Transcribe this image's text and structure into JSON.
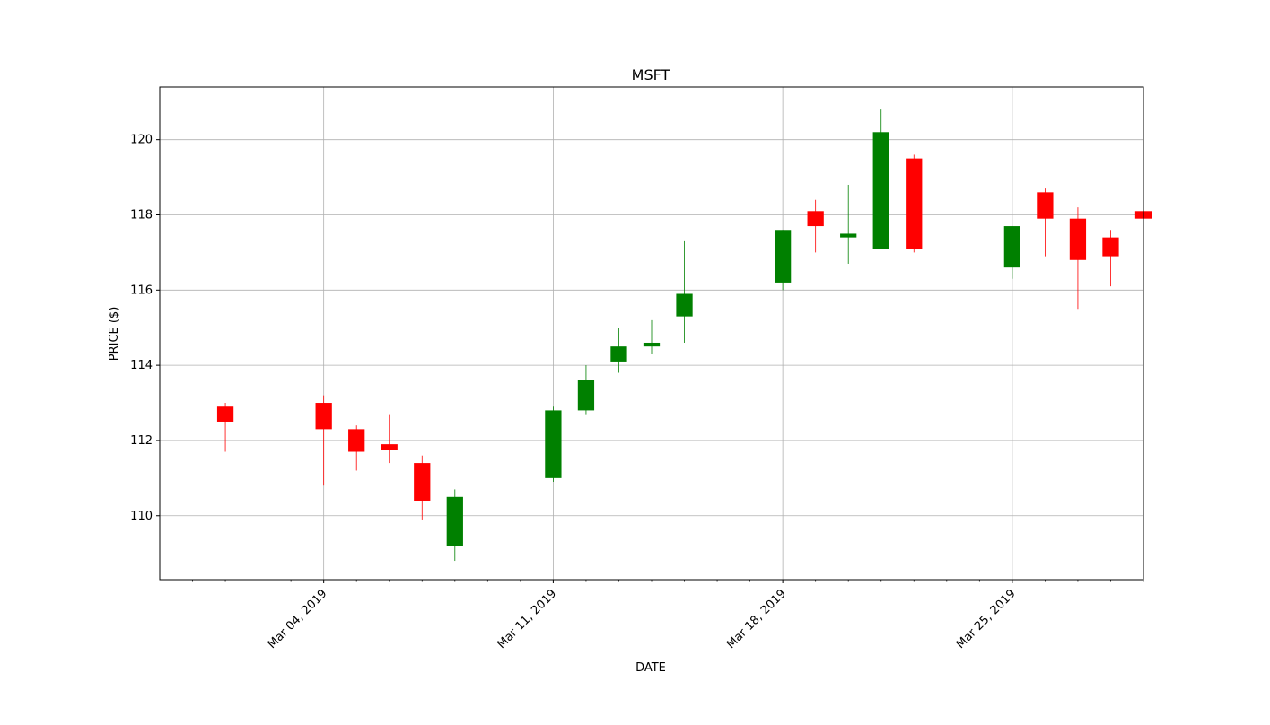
{
  "chart_data": {
    "type": "candlestick",
    "title": "MSFT",
    "xlabel": "DATE",
    "ylabel": "PRICE ($)",
    "ylim": [
      108.3,
      121.4
    ],
    "xlim": [
      "2019-02-27",
      "2019-03-29"
    ],
    "grid": true,
    "up_color": "#008000",
    "down_color": "#ff0000",
    "yticks": [
      110,
      112,
      114,
      116,
      118,
      120
    ],
    "xticks": [
      {
        "date": "2019-03-04",
        "label": "Mar 04, 2019"
      },
      {
        "date": "2019-03-11",
        "label": "Mar 11, 2019"
      },
      {
        "date": "2019-03-18",
        "label": "Mar 18, 2019"
      },
      {
        "date": "2019-03-25",
        "label": "Mar 25, 2019"
      }
    ],
    "minor_ticks": [
      "2019-02-28",
      "2019-03-01",
      "2019-03-02",
      "2019-03-03",
      "2019-03-05",
      "2019-03-06",
      "2019-03-07",
      "2019-03-08",
      "2019-03-09",
      "2019-03-10",
      "2019-03-12",
      "2019-03-13",
      "2019-03-14",
      "2019-03-15",
      "2019-03-16",
      "2019-03-17",
      "2019-03-19",
      "2019-03-20",
      "2019-03-21",
      "2019-03-22",
      "2019-03-23",
      "2019-03-24",
      "2019-03-26",
      "2019-03-27",
      "2019-03-28",
      "2019-03-29"
    ],
    "candles": [
      {
        "date": "2019-03-01",
        "open": 112.9,
        "high": 113.0,
        "low": 111.7,
        "close": 112.5
      },
      {
        "date": "2019-03-04",
        "open": 113.0,
        "high": 113.2,
        "low": 110.8,
        "close": 112.3
      },
      {
        "date": "2019-03-05",
        "open": 112.3,
        "high": 112.4,
        "low": 111.2,
        "close": 111.7
      },
      {
        "date": "2019-03-06",
        "open": 111.9,
        "high": 112.7,
        "low": 111.4,
        "close": 111.75
      },
      {
        "date": "2019-03-07",
        "open": 111.4,
        "high": 111.6,
        "low": 109.9,
        "close": 110.4
      },
      {
        "date": "2019-03-08",
        "open": 109.2,
        "high": 110.7,
        "low": 108.8,
        "close": 110.5
      },
      {
        "date": "2019-03-11",
        "open": 111.0,
        "high": 112.9,
        "low": 110.9,
        "close": 112.8
      },
      {
        "date": "2019-03-12",
        "open": 112.8,
        "high": 114.0,
        "low": 112.7,
        "close": 113.6
      },
      {
        "date": "2019-03-13",
        "open": 114.1,
        "high": 115.0,
        "low": 113.8,
        "close": 114.5
      },
      {
        "date": "2019-03-14",
        "open": 114.5,
        "high": 115.2,
        "low": 114.3,
        "close": 114.6
      },
      {
        "date": "2019-03-15",
        "open": 115.3,
        "high": 117.3,
        "low": 114.6,
        "close": 115.9
      },
      {
        "date": "2019-03-18",
        "open": 116.2,
        "high": 117.6,
        "low": 116.0,
        "close": 117.6
      },
      {
        "date": "2019-03-19",
        "open": 118.1,
        "high": 118.4,
        "low": 117.0,
        "close": 117.7
      },
      {
        "date": "2019-03-20",
        "open": 117.4,
        "high": 118.8,
        "low": 116.7,
        "close": 117.5
      },
      {
        "date": "2019-03-21",
        "open": 117.1,
        "high": 120.8,
        "low": 117.1,
        "close": 120.2
      },
      {
        "date": "2019-03-22",
        "open": 119.5,
        "high": 119.6,
        "low": 117.0,
        "close": 117.1
      },
      {
        "date": "2019-03-25",
        "open": 116.6,
        "high": 117.7,
        "low": 116.3,
        "close": 117.7
      },
      {
        "date": "2019-03-26",
        "open": 118.6,
        "high": 118.7,
        "low": 116.9,
        "close": 117.9
      },
      {
        "date": "2019-03-27",
        "open": 117.9,
        "high": 118.2,
        "low": 115.5,
        "close": 116.8
      },
      {
        "date": "2019-03-28",
        "open": 117.4,
        "high": 117.6,
        "low": 116.1,
        "close": 116.9
      },
      {
        "date": "2019-03-29",
        "open": 118.1,
        "high": 118.3,
        "low": 117.0,
        "close": 117.9
      }
    ]
  }
}
